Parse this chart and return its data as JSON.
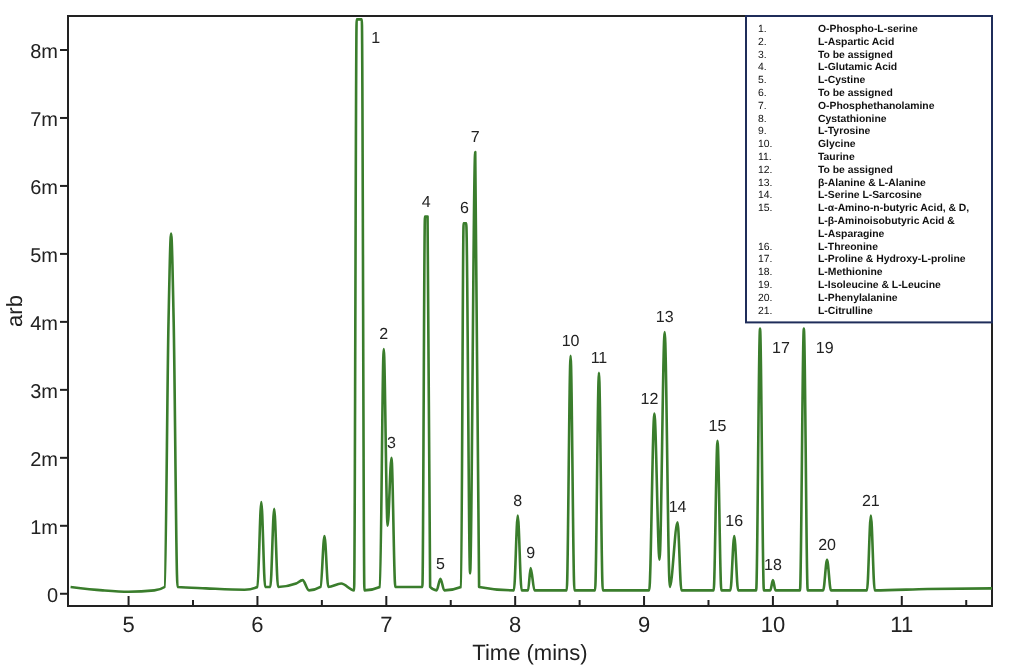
{
  "chart_data": {
    "type": "line",
    "xlabel": "Time (mins)",
    "ylabel": "arb",
    "xlim": [
      4.53,
      11.7
    ],
    "ylim": [
      -0.18,
      8.5
    ],
    "xticks": [
      5,
      {
        "value": 5.5,
        "label": null
      },
      6,
      {
        "value": 6.5,
        "label": null
      },
      7,
      {
        "value": 7.5,
        "label": null
      },
      8,
      {
        "value": 8.5,
        "label": null
      },
      9,
      {
        "value": 9.5,
        "label": null
      },
      10,
      {
        "value": 10.5,
        "label": null
      },
      11,
      {
        "value": 11.5,
        "label": null
      }
    ],
    "yticks": [
      0,
      {
        "value": 1,
        "label": "1m"
      },
      {
        "value": 2,
        "label": "2m"
      },
      {
        "value": 3,
        "label": "3m"
      },
      {
        "value": 4,
        "label": "4m"
      },
      {
        "value": 5,
        "label": "5m"
      },
      {
        "value": 6,
        "label": "6m"
      },
      {
        "value": 7,
        "label": "7m"
      },
      {
        "value": 8,
        "label": "8m"
      }
    ],
    "grid": false,
    "marker": "none",
    "line_style": "solid",
    "series": [
      {
        "color": "#3a7d2c",
        "x": [
          4.55,
          4.8,
          5.0,
          5.2,
          5.28,
          5.31,
          5.33,
          5.35,
          5.38,
          5.6,
          5.9,
          6.0,
          6.03,
          6.06,
          6.1,
          6.13,
          6.16,
          6.3,
          6.35,
          6.4,
          6.49,
          6.52,
          6.55,
          6.65,
          6.75,
          6.77,
          6.81,
          6.83,
          6.95,
          6.98,
          7.01,
          7.04,
          7.07,
          7.28,
          7.3,
          7.32,
          7.34,
          7.39,
          7.42,
          7.45,
          7.58,
          7.6,
          7.62,
          7.65,
          7.69,
          7.72,
          7.99,
          8.02,
          8.05,
          8.1,
          8.12,
          8.15,
          8.4,
          8.43,
          8.46,
          8.62,
          8.65,
          8.68,
          9.04,
          9.08,
          9.12,
          9.16,
          9.2,
          9.26,
          9.29,
          9.54,
          9.57,
          9.6,
          9.67,
          9.7,
          9.73,
          9.87,
          9.9,
          9.93,
          9.98,
          10.0,
          10.02,
          10.21,
          10.24,
          10.27,
          10.39,
          10.42,
          10.45,
          10.73,
          10.76,
          10.79,
          11.2,
          11.7
        ],
        "values": [
          0.1,
          0.05,
          0.03,
          0.05,
          0.1,
          4.0,
          5.3,
          4.0,
          0.1,
          0.08,
          0.06,
          0.1,
          1.35,
          0.1,
          0.1,
          1.25,
          0.1,
          0.15,
          0.2,
          0.05,
          0.1,
          0.85,
          0.1,
          0.15,
          0.05,
          8.45,
          8.45,
          0.05,
          0.1,
          3.6,
          1.0,
          2.0,
          0.1,
          0.1,
          5.55,
          5.55,
          0.1,
          0.05,
          0.22,
          0.05,
          0.1,
          5.45,
          5.45,
          0.3,
          6.5,
          0.1,
          0.05,
          1.15,
          0.05,
          0.05,
          0.38,
          0.05,
          0.05,
          3.5,
          0.05,
          0.05,
          3.25,
          0.05,
          0.05,
          2.65,
          0.5,
          3.85,
          0.1,
          1.05,
          0.05,
          0.05,
          2.25,
          0.05,
          0.05,
          0.85,
          0.05,
          0.05,
          3.9,
          0.05,
          0.05,
          0.2,
          0.05,
          0.05,
          3.9,
          0.05,
          0.05,
          0.5,
          0.05,
          0.05,
          1.15,
          0.05,
          0.07,
          0.08
        ]
      }
    ],
    "annotations": [
      {
        "text": "1",
        "x": 6.79,
        "y": 8.45
      },
      {
        "text": "2",
        "x": 6.98,
        "y": 3.6
      },
      {
        "text": "3",
        "x": 7.04,
        "y": 2.0
      },
      {
        "text": "4",
        "x": 7.31,
        "y": 5.55
      },
      {
        "text": "5",
        "x": 7.42,
        "y": 0.22
      },
      {
        "text": "6",
        "x": 7.61,
        "y": 5.45
      },
      {
        "text": "7",
        "x": 7.69,
        "y": 6.5
      },
      {
        "text": "8",
        "x": 8.02,
        "y": 1.15
      },
      {
        "text": "9",
        "x": 8.12,
        "y": 0.38
      },
      {
        "text": "10",
        "x": 8.43,
        "y": 3.5
      },
      {
        "text": "11",
        "x": 8.65,
        "y": 3.25
      },
      {
        "text": "12",
        "x": 9.08,
        "y": 2.65
      },
      {
        "text": "13",
        "x": 9.16,
        "y": 3.85
      },
      {
        "text": "14",
        "x": 9.26,
        "y": 1.05
      },
      {
        "text": "15",
        "x": 9.57,
        "y": 2.25
      },
      {
        "text": "16",
        "x": 9.7,
        "y": 0.85
      },
      {
        "text": "17",
        "x": 9.9,
        "y": 3.9
      },
      {
        "text": "18",
        "x": 10.0,
        "y": 0.2
      },
      {
        "text": "19",
        "x": 10.24,
        "y": 3.9
      },
      {
        "text": "20",
        "x": 10.42,
        "y": 0.5
      },
      {
        "text": "21",
        "x": 10.76,
        "y": 1.15
      },
      "1. O-Phospho-L-serine",
      "2. L-Aspartic Acid",
      "3. To be assigned",
      "4. L-Glutamic Acid",
      "5. L-Cystine",
      "6. To be assigned",
      "7. O-Phosphethanolamine",
      "8. Cystathionine",
      "9. L-Tyrosine",
      "10. Glycine",
      "11. Taurine",
      "12. To be assigned",
      "13. β-Alanine & L-Alanine",
      "14. L-Serine L-Sarcosine",
      "15. L-α-Amino-n-butyric Acid, & D, L-β-Aminoisobutyric Acid & L-Asparagine",
      "16. L-Threonine",
      "17. L-Proline & Hydroxy-L-proline",
      "18. L-Methionine",
      "19. L-Isoleucine & L-Leucine",
      "20. L-Phenylalanine",
      "21. L-Citrulline"
    ]
  }
}
